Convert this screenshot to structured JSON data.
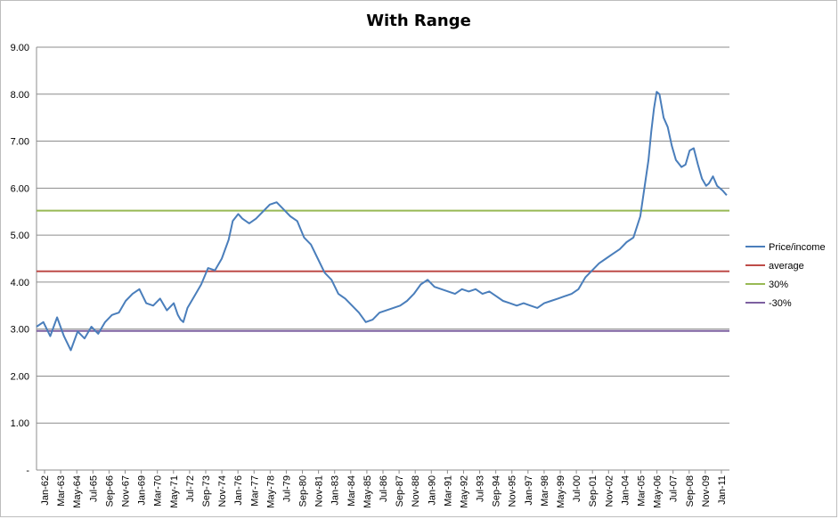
{
  "chart_data": {
    "type": "line",
    "title": "With Range",
    "xlabel": "",
    "ylabel": "",
    "ylim": [
      0,
      9
    ],
    "y_tick_labels": [
      "-",
      "1.00",
      "2.00",
      "3.00",
      "4.00",
      "5.00",
      "6.00",
      "7.00",
      "8.00",
      "9.00"
    ],
    "x_tick_labels": [
      "Jan-62",
      "Mar-63",
      "May-64",
      "Jul-65",
      "Sep-66",
      "Nov-67",
      "Jan-69",
      "Mar-70",
      "May-71",
      "Jul-72",
      "Sep-73",
      "Nov-74",
      "Jan-76",
      "Mar-77",
      "May-78",
      "Jul-79",
      "Sep-80",
      "Nov-81",
      "Jan-83",
      "Mar-84",
      "May-85",
      "Jul-86",
      "Sep-87",
      "Nov-88",
      "Jan-90",
      "Mar-91",
      "May-92",
      "Jul-93",
      "Sep-94",
      "Nov-95",
      "Jan-97",
      "Mar-98",
      "May-99",
      "Jul-00",
      "Sep-01",
      "Nov-02",
      "Jan-04",
      "Mar-05",
      "May-06",
      "Jul-07",
      "Sep-08",
      "Nov-09",
      "Jan-11"
    ],
    "x_range": [
      1962.0,
      2012.5
    ],
    "grid": true,
    "legend_position": "right",
    "series": [
      {
        "name": "Price/income",
        "color": "#4a7ebb",
        "points": [
          [
            1962.0,
            3.05
          ],
          [
            1962.5,
            3.15
          ],
          [
            1963.0,
            2.85
          ],
          [
            1963.5,
            3.25
          ],
          [
            1964.0,
            2.85
          ],
          [
            1964.5,
            2.55
          ],
          [
            1965.0,
            2.95
          ],
          [
            1965.5,
            2.8
          ],
          [
            1966.0,
            3.05
          ],
          [
            1966.5,
            2.9
          ],
          [
            1967.0,
            3.15
          ],
          [
            1967.5,
            3.3
          ],
          [
            1968.0,
            3.35
          ],
          [
            1968.5,
            3.6
          ],
          [
            1969.0,
            3.75
          ],
          [
            1969.5,
            3.85
          ],
          [
            1970.0,
            3.55
          ],
          [
            1970.5,
            3.5
          ],
          [
            1971.0,
            3.65
          ],
          [
            1971.5,
            3.4
          ],
          [
            1972.0,
            3.55
          ],
          [
            1972.3,
            3.3
          ],
          [
            1972.5,
            3.2
          ],
          [
            1972.7,
            3.15
          ],
          [
            1973.0,
            3.45
          ],
          [
            1973.5,
            3.7
          ],
          [
            1974.0,
            3.95
          ],
          [
            1974.5,
            4.3
          ],
          [
            1975.0,
            4.25
          ],
          [
            1975.5,
            4.5
          ],
          [
            1976.0,
            4.9
          ],
          [
            1976.3,
            5.3
          ],
          [
            1976.7,
            5.45
          ],
          [
            1977.0,
            5.35
          ],
          [
            1977.5,
            5.25
          ],
          [
            1978.0,
            5.35
          ],
          [
            1978.5,
            5.5
          ],
          [
            1979.0,
            5.65
          ],
          [
            1979.5,
            5.7
          ],
          [
            1980.0,
            5.55
          ],
          [
            1980.5,
            5.4
          ],
          [
            1981.0,
            5.3
          ],
          [
            1981.5,
            4.95
          ],
          [
            1982.0,
            4.8
          ],
          [
            1982.5,
            4.5
          ],
          [
            1983.0,
            4.2
          ],
          [
            1983.5,
            4.05
          ],
          [
            1984.0,
            3.75
          ],
          [
            1984.5,
            3.65
          ],
          [
            1985.0,
            3.5
          ],
          [
            1985.5,
            3.35
          ],
          [
            1986.0,
            3.15
          ],
          [
            1986.5,
            3.2
          ],
          [
            1987.0,
            3.35
          ],
          [
            1987.5,
            3.4
          ],
          [
            1988.0,
            3.45
          ],
          [
            1988.5,
            3.5
          ],
          [
            1989.0,
            3.6
          ],
          [
            1989.5,
            3.75
          ],
          [
            1990.0,
            3.95
          ],
          [
            1990.5,
            4.05
          ],
          [
            1991.0,
            3.9
          ],
          [
            1991.5,
            3.85
          ],
          [
            1992.0,
            3.8
          ],
          [
            1992.5,
            3.75
          ],
          [
            1993.0,
            3.85
          ],
          [
            1993.5,
            3.8
          ],
          [
            1994.0,
            3.85
          ],
          [
            1994.5,
            3.75
          ],
          [
            1995.0,
            3.8
          ],
          [
            1995.5,
            3.7
          ],
          [
            1996.0,
            3.6
          ],
          [
            1996.5,
            3.55
          ],
          [
            1997.0,
            3.5
          ],
          [
            1997.5,
            3.55
          ],
          [
            1998.0,
            3.5
          ],
          [
            1998.5,
            3.45
          ],
          [
            1999.0,
            3.55
          ],
          [
            1999.5,
            3.6
          ],
          [
            2000.0,
            3.65
          ],
          [
            2000.5,
            3.7
          ],
          [
            2001.0,
            3.75
          ],
          [
            2001.5,
            3.85
          ],
          [
            2002.0,
            4.1
          ],
          [
            2002.5,
            4.25
          ],
          [
            2003.0,
            4.4
          ],
          [
            2003.5,
            4.5
          ],
          [
            2004.0,
            4.6
          ],
          [
            2004.5,
            4.7
          ],
          [
            2005.0,
            4.85
          ],
          [
            2005.5,
            4.95
          ],
          [
            2006.0,
            5.4
          ],
          [
            2006.3,
            6.0
          ],
          [
            2006.6,
            6.6
          ],
          [
            2006.8,
            7.2
          ],
          [
            2007.0,
            7.7
          ],
          [
            2007.2,
            8.05
          ],
          [
            2007.4,
            8.0
          ],
          [
            2007.7,
            7.5
          ],
          [
            2008.0,
            7.3
          ],
          [
            2008.3,
            6.9
          ],
          [
            2008.6,
            6.6
          ],
          [
            2009.0,
            6.45
          ],
          [
            2009.3,
            6.5
          ],
          [
            2009.6,
            6.8
          ],
          [
            2009.9,
            6.85
          ],
          [
            2010.2,
            6.5
          ],
          [
            2010.5,
            6.2
          ],
          [
            2010.8,
            6.05
          ],
          [
            2011.0,
            6.1
          ],
          [
            2011.3,
            6.25
          ],
          [
            2011.6,
            6.05
          ],
          [
            2012.0,
            5.95
          ],
          [
            2012.3,
            5.85
          ]
        ]
      },
      {
        "name": "average",
        "color": "#be4b48",
        "value": 4.23
      },
      {
        "name": "30%",
        "color": "#98b954",
        "value": 5.52
      },
      {
        "name": "-30%",
        "color": "#7d60a0",
        "value": 2.96
      }
    ]
  }
}
